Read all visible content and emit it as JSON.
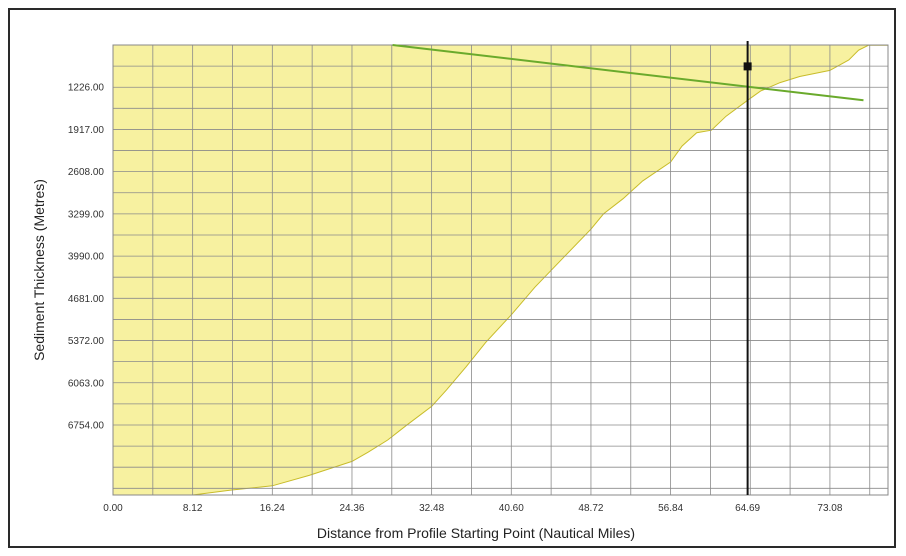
{
  "chart_data": {
    "type": "area",
    "title": "",
    "xlabel": "Distance from Profile Starting Point (Nautical Miles)",
    "ylabel": "Sediment Thickness (Metres)",
    "xlim": [
      0,
      79
    ],
    "ylim": [
      535,
      7900
    ],
    "y_inverted": true,
    "x_ticks": [
      "0.00",
      "8.12",
      "16.24",
      "24.36",
      "32.48",
      "40.60",
      "48.72",
      "56.84",
      "64.69",
      "73.08"
    ],
    "x_tick_values": [
      0,
      8.12,
      16.24,
      24.36,
      32.48,
      40.6,
      48.72,
      56.84,
      64.69,
      73.08
    ],
    "y_ticks": [
      "1226.00",
      "1917.00",
      "2608.00",
      "3299.00",
      "3990.00",
      "4681.00",
      "5372.00",
      "6063.00",
      "6754.00"
    ],
    "y_tick_values": [
      1226,
      1917,
      2608,
      3299,
      3990,
      4681,
      5372,
      6063,
      6754
    ],
    "grid": true,
    "series": [
      {
        "kind": "sediment-thickness-area",
        "color": "#f7f1a0",
        "edge_color": "#c8bc2a",
        "x": [
          0,
          4,
          8.12,
          12,
          16.24,
          20,
          24.36,
          26,
          28,
          30,
          32.48,
          34,
          36,
          38,
          40.6,
          43,
          46,
          48.72,
          50,
          52,
          54,
          56.84,
          58,
          59.5,
          61,
          62.5,
          64.69,
          66,
          68,
          70,
          73.08,
          75,
          76,
          77,
          79
        ],
        "values": [
          7900,
          7900,
          7900,
          7820,
          7750,
          7580,
          7350,
          7200,
          7000,
          6750,
          6450,
          6180,
          5800,
          5400,
          4950,
          4500,
          4000,
          3550,
          3300,
          3050,
          2760,
          2450,
          2190,
          1970,
          1930,
          1700,
          1440,
          1290,
          1150,
          1050,
          950,
          780,
          620,
          540,
          540
        ]
      },
      {
        "kind": "trend-line",
        "color": "#6aaa2c",
        "x": [
          28.5,
          76.5
        ],
        "values": [
          535,
          1440
        ]
      },
      {
        "kind": "vertical-marker",
        "color": "#111111",
        "x": 64.69,
        "marker_y": 885
      }
    ]
  }
}
